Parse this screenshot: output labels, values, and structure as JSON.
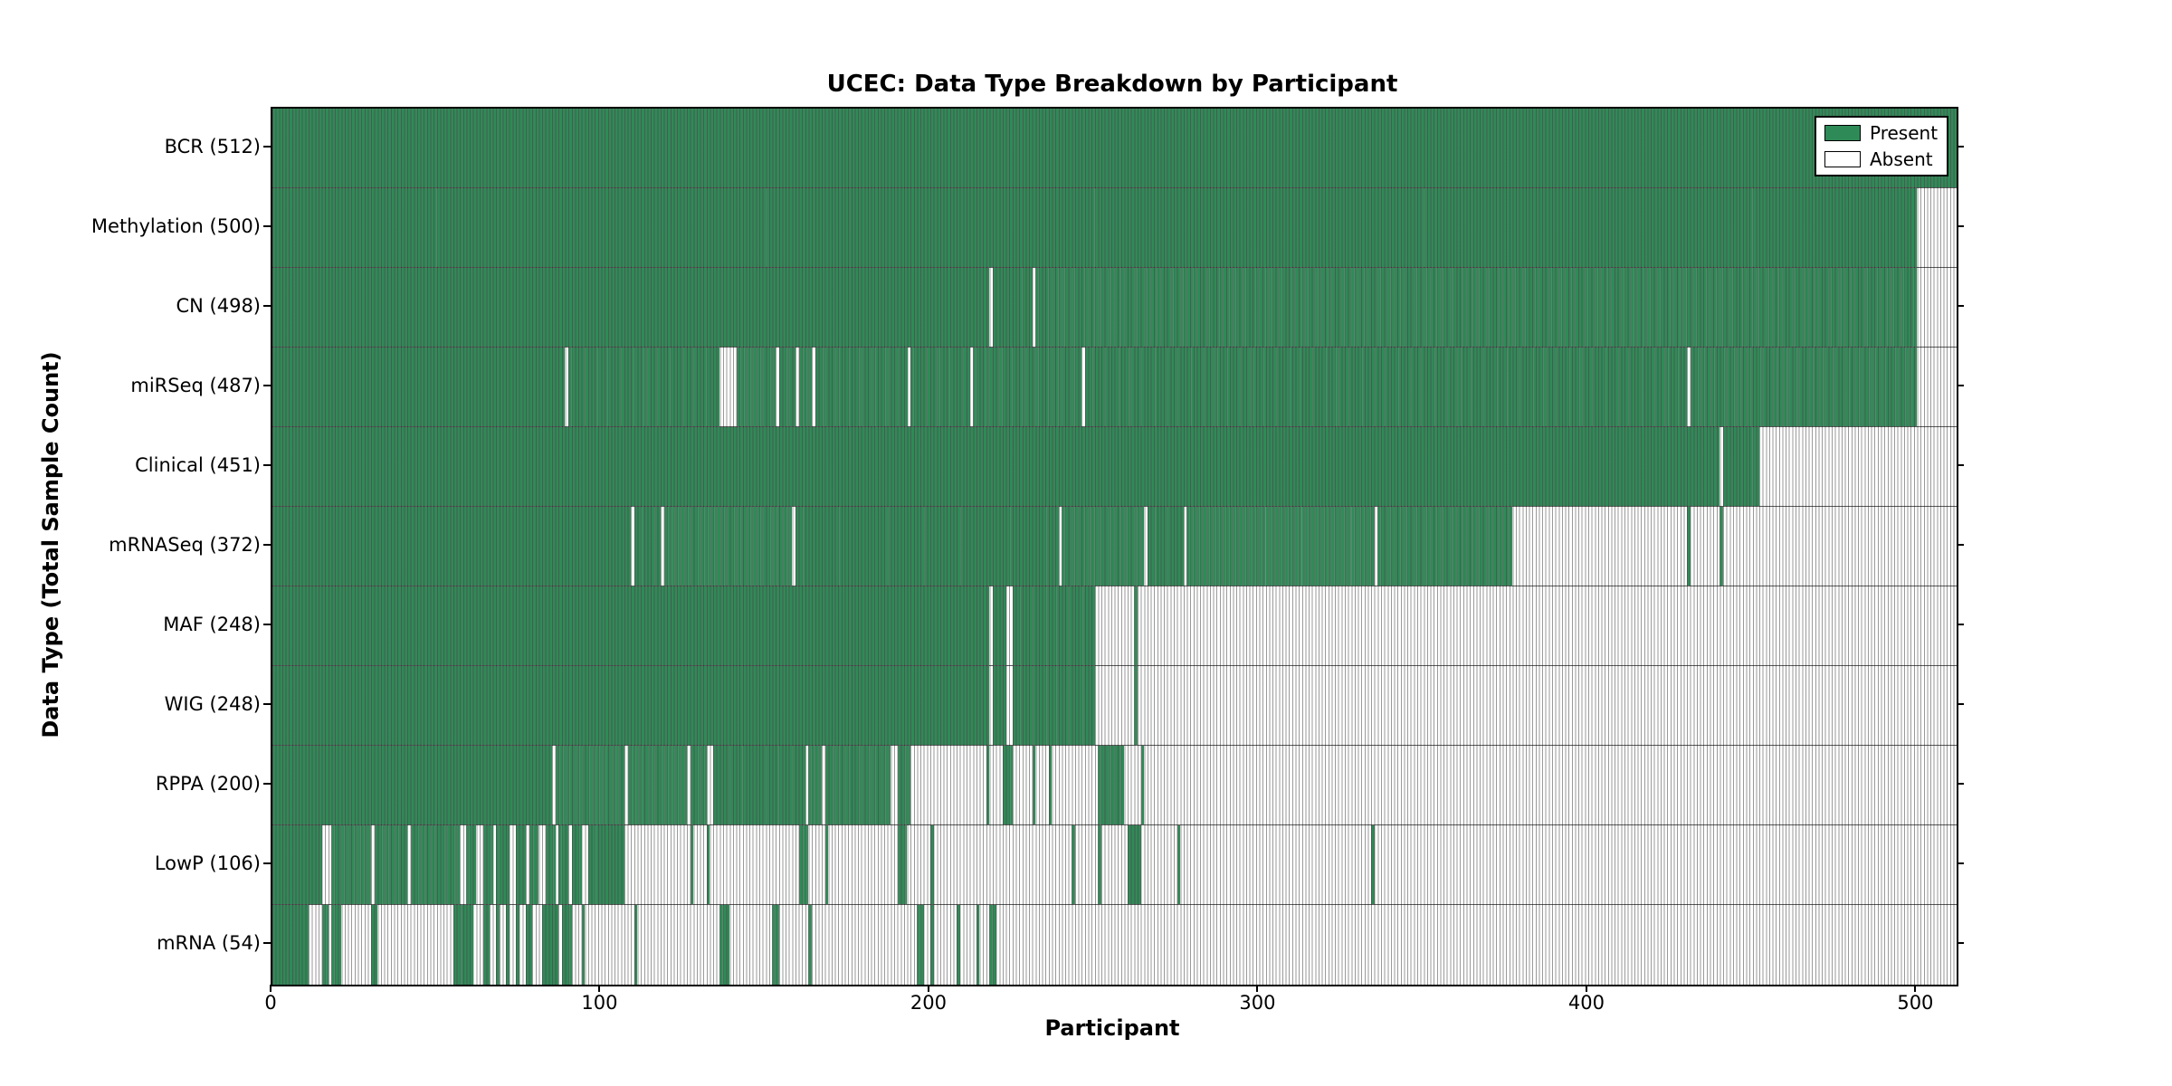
{
  "chart_data": {
    "type": "heatmap",
    "title": "UCEC: Data Type Breakdown by Participant",
    "xlabel": "Participant",
    "ylabel": "Data Type (Total Sample Count)",
    "x_ticks": [
      0,
      100,
      200,
      300,
      400,
      500
    ],
    "x_range": [
      0,
      512
    ],
    "n_participants": 512,
    "grid": false,
    "legend_position": "upper right",
    "colors": {
      "present": "#2e8b57",
      "absent": "#ffffff"
    },
    "legend": [
      {
        "label": "Present",
        "color": "#2e8b57"
      },
      {
        "label": "Absent",
        "color": "#ffffff"
      }
    ],
    "rows": [
      {
        "label": "BCR (512)",
        "name": "bcr",
        "count": 512,
        "present_segments": [
          [
            0,
            511
          ]
        ]
      },
      {
        "label": "Methylation (500)",
        "name": "methylation",
        "count": 500,
        "present_segments": [
          [
            0,
            499
          ]
        ]
      },
      {
        "label": "CN (498)",
        "name": "cn",
        "count": 498,
        "present_segments": [
          [
            0,
            217
          ],
          [
            219,
            230
          ],
          [
            232,
            499
          ]
        ]
      },
      {
        "label": "miRSeq (487)",
        "name": "mirseq",
        "count": 487,
        "present_segments": [
          [
            0,
            88
          ],
          [
            90,
            135
          ],
          [
            141,
            152
          ],
          [
            154,
            158
          ],
          [
            160,
            163
          ],
          [
            165,
            192
          ],
          [
            194,
            211
          ],
          [
            213,
            245
          ],
          [
            247,
            429
          ],
          [
            431,
            499
          ]
        ]
      },
      {
        "label": "Clinical (451)",
        "name": "clinical",
        "count": 451,
        "present_segments": [
          [
            0,
            439
          ],
          [
            441,
            451
          ]
        ]
      },
      {
        "label": "mRNASeq (372)",
        "name": "mrnaseq",
        "count": 372,
        "present_segments": [
          [
            0,
            108
          ],
          [
            110,
            117
          ],
          [
            119,
            157
          ],
          [
            159,
            238
          ],
          [
            240,
            264
          ],
          [
            266,
            276
          ],
          [
            278,
            334
          ],
          [
            336,
            376
          ],
          [
            430,
            430
          ],
          [
            440,
            440
          ]
        ]
      },
      {
        "label": "MAF (248)",
        "name": "maf",
        "count": 248,
        "present_segments": [
          [
            0,
            217
          ],
          [
            219,
            222
          ],
          [
            225,
            249
          ],
          [
            262,
            262
          ]
        ]
      },
      {
        "label": "WIG (248)",
        "name": "wig",
        "count": 248,
        "present_segments": [
          [
            0,
            217
          ],
          [
            219,
            222
          ],
          [
            225,
            249
          ],
          [
            262,
            262
          ]
        ]
      },
      {
        "label": "RPPA (200)",
        "name": "rppa",
        "count": 200,
        "present_segments": [
          [
            0,
            84
          ],
          [
            86,
            106
          ],
          [
            108,
            125
          ],
          [
            127,
            131
          ],
          [
            134,
            161
          ],
          [
            163,
            166
          ],
          [
            168,
            187
          ],
          [
            190,
            193
          ],
          [
            217,
            217
          ],
          [
            222,
            224
          ],
          [
            231,
            231
          ],
          [
            236,
            236
          ],
          [
            251,
            258
          ],
          [
            264,
            264
          ]
        ]
      },
      {
        "label": "LowP (106)",
        "name": "lowp",
        "count": 106,
        "present_segments": [
          [
            0,
            14
          ],
          [
            18,
            29
          ],
          [
            31,
            40
          ],
          [
            42,
            56
          ],
          [
            59,
            61
          ],
          [
            64,
            66
          ],
          [
            68,
            71
          ],
          [
            74,
            76
          ],
          [
            78,
            80
          ],
          [
            83,
            85
          ],
          [
            87,
            89
          ],
          [
            91,
            93
          ],
          [
            96,
            106
          ],
          [
            127,
            127
          ],
          [
            132,
            132
          ],
          [
            160,
            162
          ],
          [
            168,
            168
          ],
          [
            190,
            192
          ],
          [
            200,
            200
          ],
          [
            243,
            243
          ],
          [
            251,
            251
          ],
          [
            260,
            263
          ],
          [
            275,
            275
          ],
          [
            334,
            334
          ]
        ]
      },
      {
        "label": "mRNA (54)",
        "name": "mrna",
        "count": 54,
        "present_segments": [
          [
            0,
            10
          ],
          [
            15,
            16
          ],
          [
            18,
            20
          ],
          [
            30,
            31
          ],
          [
            55,
            60
          ],
          [
            64,
            65
          ],
          [
            68,
            68
          ],
          [
            71,
            71
          ],
          [
            74,
            74
          ],
          [
            77,
            78
          ],
          [
            82,
            86
          ],
          [
            88,
            90
          ],
          [
            94,
            94
          ],
          [
            110,
            110
          ],
          [
            136,
            138
          ],
          [
            152,
            153
          ],
          [
            163,
            163
          ],
          [
            196,
            197
          ],
          [
            200,
            200
          ],
          [
            208,
            208
          ],
          [
            214,
            214
          ],
          [
            218,
            219
          ]
        ]
      }
    ]
  }
}
